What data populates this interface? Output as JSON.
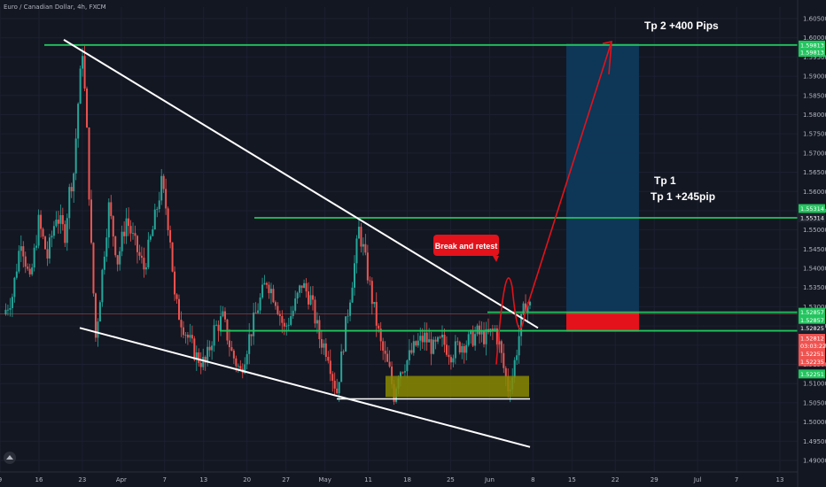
{
  "symbol_title": "Euro / Canadian Dollar, 4h, FXCM",
  "colors": {
    "background": "#131722",
    "bull": "#26a69a",
    "bear": "#ef5350",
    "level": "#22c55e",
    "trendline": "#ffffff",
    "target_zone": "#0e3a5c",
    "stop_zone": "#e3121b",
    "support_box": "#8a8a00",
    "arrow": "#e3121b"
  },
  "chart_data": {
    "type": "candlestick",
    "ylim": [
      1.487,
      1.608
    ],
    "y_ticks": [
      "1.60500",
      "1.60000",
      "1.59500",
      "1.59000",
      "1.58500",
      "1.58000",
      "1.57500",
      "1.57000",
      "1.56500",
      "1.56000",
      "1.55500",
      "1.55000",
      "1.54500",
      "1.54000",
      "1.53500",
      "1.53000",
      "1.52500",
      "1.52000",
      "1.51500",
      "1.51000",
      "1.50500",
      "1.50000",
      "1.49500",
      "1.49000"
    ],
    "x_ticks": [
      "9",
      "16",
      "23",
      "Apr",
      "7",
      "13",
      "20",
      "27",
      "May",
      "11",
      "18",
      "25",
      "Jun",
      "8",
      "15",
      "22",
      "29",
      "Jul",
      "7",
      "13"
    ],
    "price_path": [
      [
        0,
        1.528
      ],
      [
        2,
        1.533
      ],
      [
        4,
        1.548
      ],
      [
        6,
        1.536
      ],
      [
        8,
        1.552
      ],
      [
        10,
        1.543
      ],
      [
        12,
        1.554
      ],
      [
        14,
        1.549
      ],
      [
        15,
        1.56
      ],
      [
        16,
        1.565
      ],
      [
        17,
        1.583
      ],
      [
        18,
        1.597
      ],
      [
        19,
        1.575
      ],
      [
        20,
        1.545
      ],
      [
        21,
        1.522
      ],
      [
        22,
        1.533
      ],
      [
        23,
        1.545
      ],
      [
        24,
        1.556
      ],
      [
        26,
        1.542
      ],
      [
        28,
        1.553
      ],
      [
        30,
        1.546
      ],
      [
        32,
        1.54
      ],
      [
        34,
        1.55
      ],
      [
        36,
        1.562
      ],
      [
        37,
        1.556
      ],
      [
        38,
        1.548
      ],
      [
        39,
        1.532
      ],
      [
        40,
        1.528
      ],
      [
        42,
        1.522
      ],
      [
        44,
        1.517
      ],
      [
        46,
        1.515
      ],
      [
        48,
        1.524
      ],
      [
        50,
        1.527
      ],
      [
        52,
        1.518
      ],
      [
        54,
        1.513
      ],
      [
        56,
        1.522
      ],
      [
        58,
        1.53
      ],
      [
        60,
        1.537
      ],
      [
        62,
        1.532
      ],
      [
        64,
        1.524
      ],
      [
        66,
        1.529
      ],
      [
        68,
        1.536
      ],
      [
        70,
        1.532
      ],
      [
        72,
        1.522
      ],
      [
        74,
        1.518
      ],
      [
        75,
        1.512
      ],
      [
        76,
        1.508
      ],
      [
        78,
        1.525
      ],
      [
        80,
        1.541
      ],
      [
        81,
        1.55
      ],
      [
        82,
        1.545
      ],
      [
        84,
        1.532
      ],
      [
        86,
        1.52
      ],
      [
        88,
        1.513
      ],
      [
        89,
        1.507
      ],
      [
        90,
        1.513
      ],
      [
        92,
        1.516
      ],
      [
        94,
        1.52
      ],
      [
        96,
        1.522
      ],
      [
        98,
        1.519
      ],
      [
        100,
        1.521
      ],
      [
        102,
        1.518
      ],
      [
        104,
        1.52
      ],
      [
        106,
        1.521
      ],
      [
        108,
        1.523
      ],
      [
        110,
        1.522
      ],
      [
        112,
        1.524
      ],
      [
        113,
        1.52
      ],
      [
        114,
        1.514
      ],
      [
        115,
        1.509
      ],
      [
        116,
        1.512
      ],
      [
        117,
        1.519
      ],
      [
        118,
        1.526
      ],
      [
        119,
        1.531
      ],
      [
        120,
        1.53
      ]
    ],
    "levels": [
      {
        "price": 1.59813,
        "label": "1.59813"
      },
      {
        "price": 1.55314,
        "label": "1.55314"
      },
      {
        "price": 1.52857,
        "label": "1.52857"
      },
      {
        "price": 1.52375,
        "label": ""
      }
    ],
    "current_price_line": 1.52812,
    "price_tags": [
      {
        "text": "1.59813",
        "color": "#22c55e",
        "price": 1.59813
      },
      {
        "text": "1.59813",
        "color": "#22c55e",
        "price": 1.5962
      },
      {
        "text": "1.55314",
        "color": "#22c55e",
        "price": 1.55556
      },
      {
        "text": "1.55314",
        "color": "#1e2330",
        "price": 1.55314
      },
      {
        "text": "1.52857",
        "color": "#22c55e",
        "price": 1.52857
      },
      {
        "text": "1.52857",
        "color": "#22c55e",
        "price": 1.5265
      },
      {
        "text": "1.52825",
        "color": "#1e2330",
        "price": 1.5244
      },
      {
        "text": "1.52812",
        "color": "#ef5350",
        "price": 1.5218
      },
      {
        "text": "03:03:22",
        "color": "#ef5350",
        "price": 1.5199
      },
      {
        "text": "1.52251",
        "color": "#ef5350",
        "price": 1.5178
      },
      {
        "text": "1.52235",
        "color": "#ef5350",
        "price": 1.5157
      },
      {
        "text": "1.52251",
        "color": "#22c55e",
        "price": 1.5125
      }
    ],
    "annotations": {
      "tp2": "Tp 2 +400 Pips",
      "tp1_line1": "Tp 1",
      "tp1_line2": "Tp 1 +245pip",
      "break_retest": "Break and retest"
    }
  }
}
